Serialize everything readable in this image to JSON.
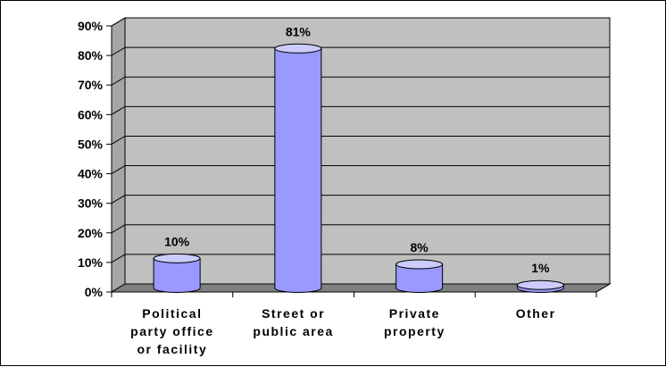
{
  "chart_data": {
    "type": "bar",
    "categories": [
      [
        "Political",
        "party office",
        "or facility"
      ],
      [
        "Street or",
        "public area"
      ],
      [
        "Private",
        "property"
      ],
      [
        "Other"
      ]
    ],
    "values": [
      10,
      81,
      8,
      1
    ],
    "data_labels": [
      "10%",
      "81%",
      "8%",
      "1%"
    ],
    "y_ticks": [
      "0%",
      "10%",
      "20%",
      "30%",
      "40%",
      "50%",
      "60%",
      "70%",
      "80%",
      "90%"
    ],
    "ylim": [
      0,
      90
    ],
    "title": "",
    "xlabel": "",
    "ylabel": "",
    "grid": true,
    "legend": "none"
  },
  "colors": {
    "wall": "#c0c0c0",
    "floor": "#808080",
    "bar_front": "#9999ff",
    "bar_top": "#ccccff",
    "grid": "#000000"
  }
}
